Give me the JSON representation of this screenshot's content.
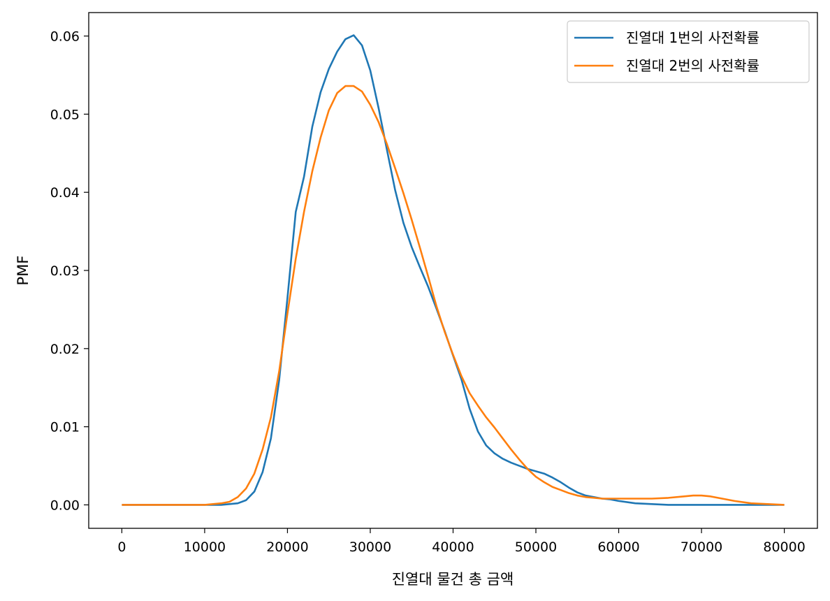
{
  "chart_data": {
    "type": "line",
    "title": "",
    "xlabel": "진열대 물건 총 금액",
    "ylabel": "PMF",
    "xlim": [
      -4000,
      84000
    ],
    "ylim": [
      -0.003,
      0.063
    ],
    "x_ticks": [
      0,
      10000,
      20000,
      30000,
      40000,
      50000,
      60000,
      70000,
      80000
    ],
    "x_tick_labels": [
      "0",
      "10000",
      "20000",
      "30000",
      "40000",
      "50000",
      "60000",
      "70000",
      "80000"
    ],
    "y_ticks": [
      0.0,
      0.01,
      0.02,
      0.03,
      0.04,
      0.05,
      0.06
    ],
    "y_tick_labels": [
      "0.00",
      "0.01",
      "0.02",
      "0.03",
      "0.04",
      "0.05",
      "0.06"
    ],
    "grid": false,
    "legend_position": "top-right",
    "series": [
      {
        "name": "진열대 1번의 사전확률",
        "color": "#1f77b4",
        "x": [
          0,
          5000,
          10000,
          12000,
          13000,
          14000,
          15000,
          16000,
          17000,
          18000,
          19000,
          20000,
          21000,
          22000,
          23000,
          24000,
          25000,
          26000,
          27000,
          28000,
          29000,
          30000,
          31000,
          32000,
          33000,
          34000,
          35000,
          36000,
          37000,
          38000,
          39000,
          40000,
          41000,
          42000,
          43000,
          44000,
          45000,
          46000,
          47000,
          48000,
          49000,
          50000,
          51000,
          52000,
          53000,
          54000,
          55000,
          56000,
          57000,
          58000,
          59000,
          60000,
          62000,
          64000,
          66000,
          70000,
          75000,
          80000
        ],
        "y": [
          0.0,
          0.0,
          0.0,
          0.0,
          0.0001,
          0.0002,
          0.0006,
          0.0017,
          0.0042,
          0.0085,
          0.016,
          0.0265,
          0.0375,
          0.042,
          0.0484,
          0.0528,
          0.0558,
          0.058,
          0.0596,
          0.0601,
          0.0588,
          0.0556,
          0.0508,
          0.0455,
          0.0403,
          0.0361,
          0.033,
          0.0304,
          0.0279,
          0.0251,
          0.0222,
          0.0191,
          0.0161,
          0.0123,
          0.0094,
          0.0076,
          0.0066,
          0.0059,
          0.0054,
          0.005,
          0.0046,
          0.0043,
          0.004,
          0.0035,
          0.0029,
          0.0022,
          0.0016,
          0.0012,
          0.001,
          0.0008,
          0.0007,
          0.0005,
          0.0002,
          0.0001,
          0.0,
          0.0,
          0.0,
          0.0
        ]
      },
      {
        "name": "진열대 2번의 사전확률",
        "color": "#ff7f0e",
        "x": [
          0,
          5000,
          10000,
          11000,
          12000,
          13000,
          14000,
          15000,
          16000,
          17000,
          18000,
          19000,
          20000,
          21000,
          22000,
          23000,
          24000,
          25000,
          26000,
          27000,
          28000,
          29000,
          30000,
          31000,
          32000,
          33000,
          34000,
          35000,
          36000,
          37000,
          38000,
          39000,
          40000,
          41000,
          42000,
          43000,
          44000,
          45000,
          46000,
          47000,
          48000,
          49000,
          50000,
          51000,
          52000,
          53000,
          54000,
          55000,
          56000,
          57000,
          58000,
          60000,
          62000,
          64000,
          66000,
          68000,
          69000,
          70000,
          71000,
          72000,
          74000,
          76000,
          78000,
          80000
        ],
        "y": [
          0.0,
          0.0,
          0.0,
          0.0001,
          0.0002,
          0.0004,
          0.001,
          0.0021,
          0.004,
          0.0071,
          0.0112,
          0.0171,
          0.0245,
          0.0315,
          0.0375,
          0.0427,
          0.047,
          0.0505,
          0.0527,
          0.0536,
          0.0536,
          0.0529,
          0.0512,
          0.049,
          0.0462,
          0.0431,
          0.0399,
          0.0365,
          0.0329,
          0.0292,
          0.0254,
          0.0221,
          0.0192,
          0.0165,
          0.0143,
          0.0127,
          0.0112,
          0.0099,
          0.0085,
          0.0071,
          0.0058,
          0.0046,
          0.0036,
          0.0029,
          0.0023,
          0.0019,
          0.0015,
          0.0012,
          0.001,
          0.0009,
          0.0008,
          0.0008,
          0.0008,
          0.0008,
          0.0009,
          0.0011,
          0.0012,
          0.0012,
          0.0011,
          0.0009,
          0.0005,
          0.0002,
          0.0001,
          0.0
        ]
      }
    ]
  }
}
